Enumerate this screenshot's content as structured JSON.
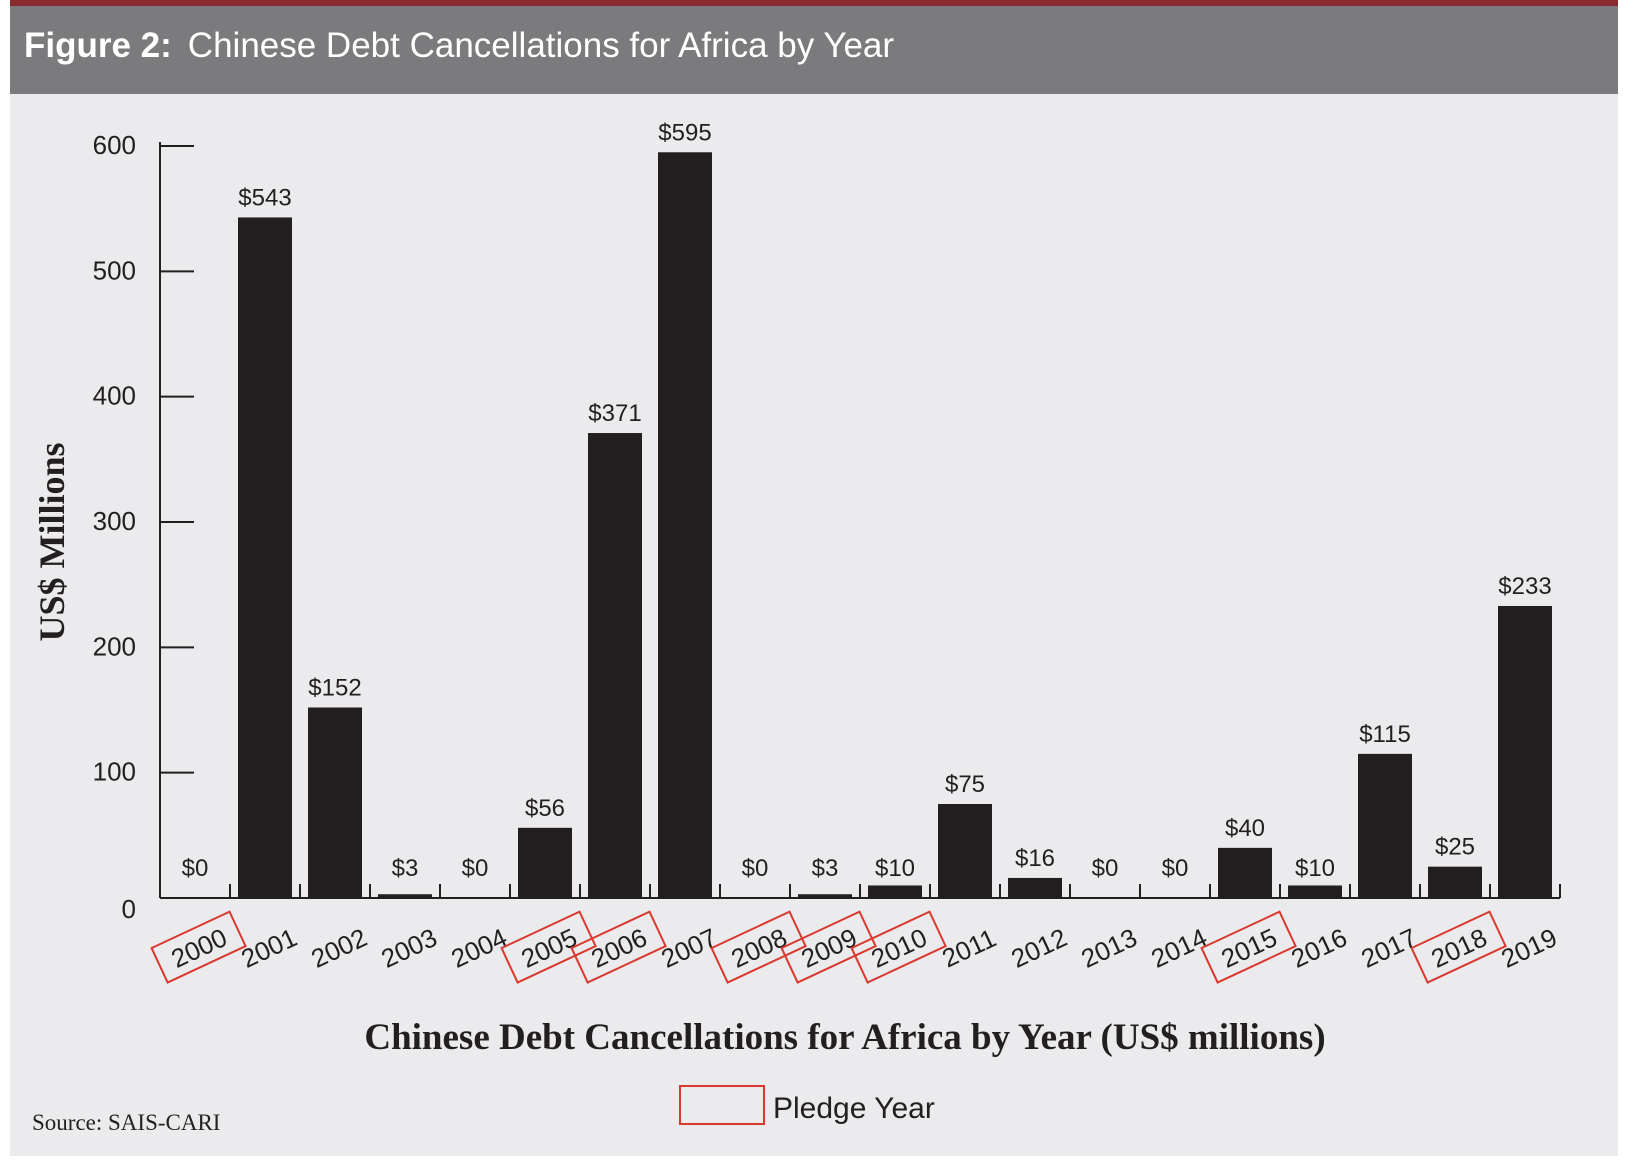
{
  "header": {
    "figure_label": "Figure 2:",
    "title": "Chinese Debt Cancellations for Africa by Year"
  },
  "source": "Source: SAIS-CARI",
  "legend": {
    "label": "Pledge Year",
    "swatch_color": "#d9392f"
  },
  "colors": {
    "bar": "#231f20",
    "pledge": "#d9392f",
    "header_bg": "#7b7b7e",
    "accent_line": "#8a2a2f",
    "panel_bg": "#ebeaec"
  },
  "chart_data": {
    "type": "bar",
    "title": "Chinese Debt Cancellations for Africa by Year",
    "xlabel": "Chinese Debt Cancellations for Africa by Year (US$ millions)",
    "ylabel": "US$ Millions",
    "ylim": [
      0,
      600
    ],
    "yticks": [
      0,
      100,
      200,
      300,
      400,
      500,
      600
    ],
    "categories": [
      "2000",
      "2001",
      "2002",
      "2003",
      "2004",
      "2005",
      "2006",
      "2007",
      "2008",
      "2009",
      "2010",
      "2011",
      "2012",
      "2013",
      "2014",
      "2015",
      "2016",
      "2017",
      "2018",
      "2019"
    ],
    "values": [
      0,
      543,
      152,
      3,
      0,
      56,
      371,
      595,
      0,
      3,
      10,
      75,
      16,
      0,
      0,
      40,
      10,
      115,
      25,
      233
    ],
    "data_labels": [
      "$0",
      "$543",
      "$152",
      "$3",
      "$0",
      "$56",
      "$371",
      "$595",
      "$0",
      "$3",
      "$10",
      "$75",
      "$16",
      "$0",
      "$0",
      "$40",
      "$10",
      "$115",
      "$25",
      "$233"
    ],
    "pledge_years": [
      "2000",
      "2005",
      "2006",
      "2008",
      "2009",
      "2010",
      "2015",
      "2018"
    ],
    "legend": "bottom-center"
  }
}
